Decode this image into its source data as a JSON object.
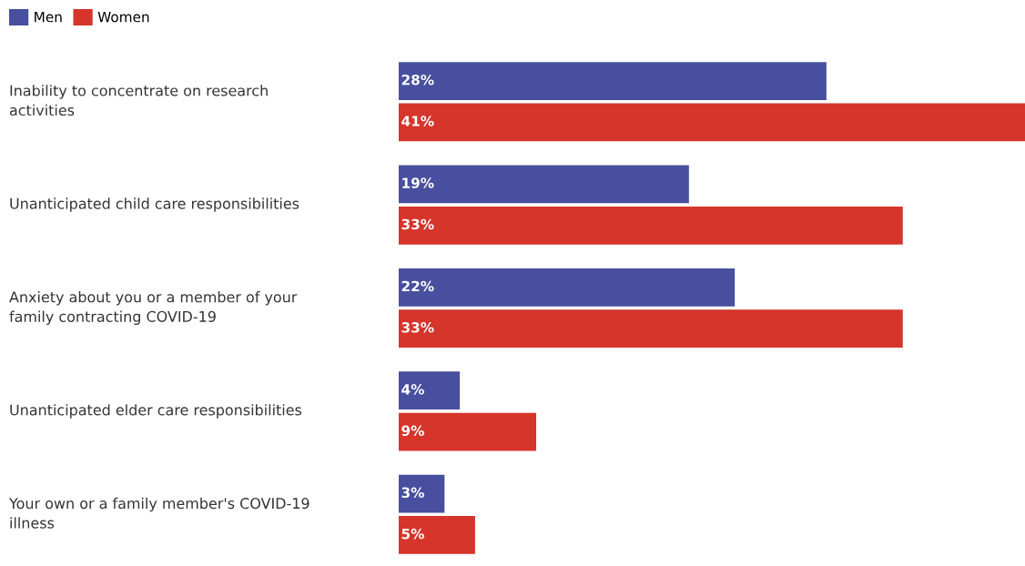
{
  "chart_data": {
    "type": "bar",
    "orientation": "horizontal",
    "legend": "top left",
    "data_labels": true,
    "categories": [
      "Inability to concentrate on research\nactivities",
      "Unanticipated child care responsibilities",
      "Anxiety about you or a member of your\nfamily contracting COVID-19",
      "Unanticipated elder care responsibilities",
      "Your own or a family member's COVID-19\nillness"
    ],
    "series": [
      {
        "name": "Men",
        "color": "#474f9e",
        "values": [
          28,
          19,
          22,
          4,
          3
        ],
        "value_labels": [
          "28%",
          "19%",
          "22%",
          "4%",
          "3%"
        ]
      },
      {
        "name": "Women",
        "color": "#d5352b",
        "values": [
          41,
          33,
          33,
          9,
          5
        ],
        "value_labels": [
          "41%",
          "33%",
          "33%",
          "9%",
          "5%"
        ]
      }
    ]
  }
}
